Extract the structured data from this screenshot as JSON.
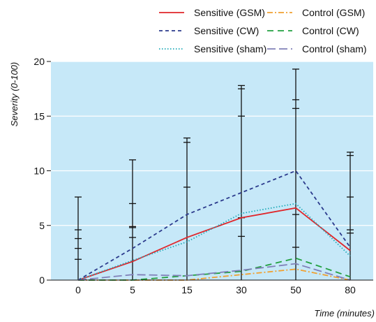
{
  "chart_data": {
    "type": "line",
    "xlabel": "Time (minutes)",
    "ylabel": "Severity (0-100)",
    "x": [
      "0",
      "5",
      "15",
      "30",
      "50",
      "80"
    ],
    "ylim": [
      0,
      20
    ],
    "yticks": [
      0,
      5,
      10,
      15,
      20
    ],
    "grid": "horizontal",
    "background": "#c6e8f8",
    "legend_position": "top-right",
    "series": [
      {
        "name": "Sensitive (GSM)",
        "color": "#e0262a",
        "dash": "solid",
        "values": [
          0,
          1.7,
          3.9,
          5.7,
          6.6,
          2.7
        ]
      },
      {
        "name": "Sensitive (CW)",
        "color": "#2b3a8c",
        "dash": "dash",
        "values": [
          0,
          2.9,
          6.0,
          8.0,
          10.0,
          3.0
        ]
      },
      {
        "name": "Sensitive (sham)",
        "color": "#1eaab8",
        "dash": "dot",
        "values": [
          0,
          1.8,
          3.5,
          6.1,
          7.0,
          2.2
        ]
      },
      {
        "name": "Control (GSM)",
        "color": "#f0a030",
        "dash": "dashdot",
        "values": [
          0,
          0,
          0,
          0.5,
          1.0,
          0
        ]
      },
      {
        "name": "Control (CW)",
        "color": "#22a040",
        "dash": "longdash",
        "values": [
          0,
          0,
          0.4,
          0.8,
          2.0,
          0.3
        ]
      },
      {
        "name": "Control (sham)",
        "color": "#8080b8",
        "dash": "longdash2",
        "values": [
          0,
          0.5,
          0.4,
          0.9,
          1.5,
          0
        ]
      }
    ],
    "error_bars": [
      {
        "x": "0",
        "upper": [
          7.6,
          4.6,
          3.8,
          2.9,
          1.9
        ]
      },
      {
        "x": "5",
        "upper": [
          11.0,
          7.0,
          4.9,
          4.8,
          3.9
        ]
      },
      {
        "x": "15",
        "upper": [
          13.0,
          12.6,
          8.5
        ]
      },
      {
        "x": "30",
        "upper": [
          17.8,
          17.5,
          15.0,
          5.7,
          4.0
        ]
      },
      {
        "x": "50",
        "upper": [
          19.3,
          16.5,
          15.7,
          6.0,
          3.0
        ]
      },
      {
        "x": "80",
        "upper": [
          11.7,
          11.4,
          7.6,
          4.6,
          4.3
        ]
      }
    ]
  }
}
